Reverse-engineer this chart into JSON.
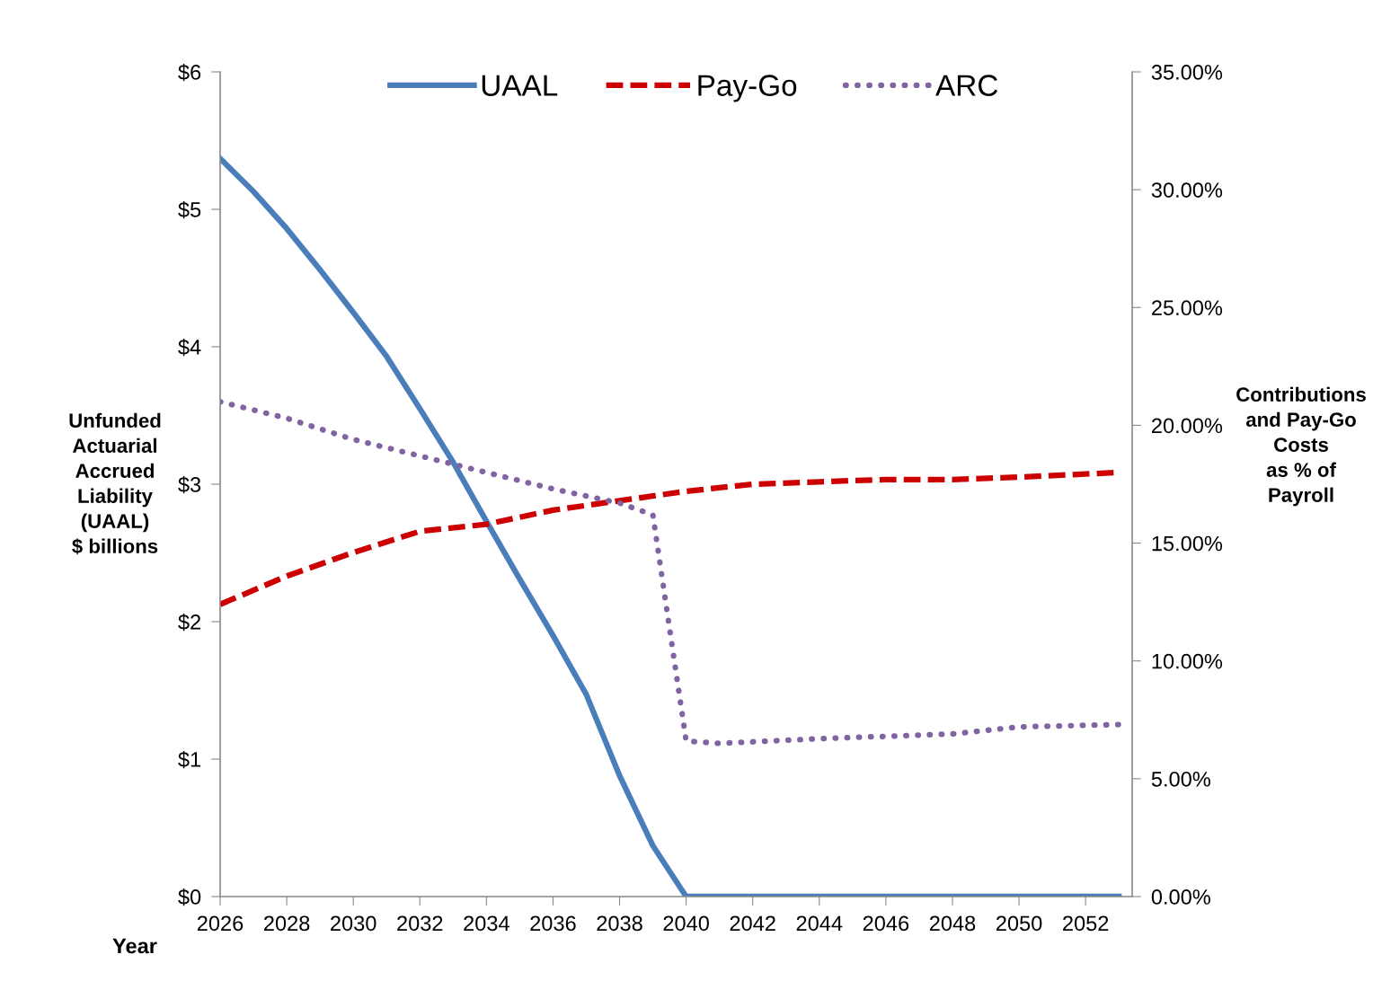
{
  "chart_data": {
    "type": "line",
    "xlabel": "Year",
    "ylabel": "Unfunded\nActuarial\nAccrued\nLiability\n(UAAL)\n$ billions",
    "y2label": "Contributions\nand Pay-Go\nCosts\nas % of\nPayroll",
    "xlim": [
      2026,
      2053.4
    ],
    "xticks": [
      2026,
      2028,
      2030,
      2032,
      2034,
      2036,
      2038,
      2040,
      2042,
      2044,
      2046,
      2048,
      2050,
      2052
    ],
    "ylim": [
      0,
      6
    ],
    "yticks": [
      {
        "value": 0,
        "label": "$0"
      },
      {
        "value": 1,
        "label": "$1"
      },
      {
        "value": 2,
        "label": "$2"
      },
      {
        "value": 3,
        "label": "$3"
      },
      {
        "value": 4,
        "label": "$4"
      },
      {
        "value": 5,
        "label": "$5"
      },
      {
        "value": 6,
        "label": "$6"
      }
    ],
    "y2lim": [
      0,
      35
    ],
    "y2ticks": [
      {
        "value": 0,
        "label": "0.00%"
      },
      {
        "value": 5,
        "label": "5.00%"
      },
      {
        "value": 10,
        "label": "10.00%"
      },
      {
        "value": 15,
        "label": "15.00%"
      },
      {
        "value": 20,
        "label": "20.00%"
      },
      {
        "value": 25,
        "label": "25.00%"
      },
      {
        "value": 30,
        "label": "30.00%"
      },
      {
        "value": 35,
        "label": "35.00%"
      }
    ],
    "grid": false,
    "legend": "top",
    "marker": "none",
    "series": [
      {
        "name": "UAAL",
        "color": "#4a7ebb",
        "line_style": "solid",
        "x": [
          2026,
          2027,
          2028,
          2029,
          2030,
          2031,
          2032,
          2033,
          2034,
          2035,
          2036,
          2037,
          2038,
          2039,
          2040,
          2053
        ],
        "values": [
          5.37,
          5.13,
          4.86,
          4.56,
          4.25,
          3.93,
          3.55,
          3.16,
          2.73,
          2.31,
          1.9,
          1.47,
          0.88,
          0.37,
          0,
          0
        ]
      },
      {
        "name": "Pay-Go",
        "color": "#cc0000",
        "line_style": "dashed",
        "axis": "y2",
        "x": [
          2026,
          2028,
          2030,
          2032,
          2034,
          2036,
          2038,
          2040,
          2042,
          2044,
          2046,
          2048,
          2050,
          2053
        ],
        "values": [
          12.4,
          13.6,
          14.6,
          15.5,
          15.8,
          16.4,
          16.8,
          17.2,
          17.5,
          17.6,
          17.7,
          17.7,
          17.8,
          18.0
        ]
      },
      {
        "name": "ARC",
        "color": "#8064a2",
        "line_style": "dotted",
        "axis": "y2",
        "x": [
          2026,
          2028,
          2030,
          2032,
          2034,
          2036,
          2038,
          2039,
          2040,
          2041,
          2044,
          2048,
          2050,
          2053
        ],
        "values": [
          21.0,
          20.3,
          19.4,
          18.7,
          18.0,
          17.3,
          16.7,
          16.2,
          6.6,
          6.5,
          6.7,
          6.9,
          7.2,
          7.3
        ]
      }
    ]
  }
}
